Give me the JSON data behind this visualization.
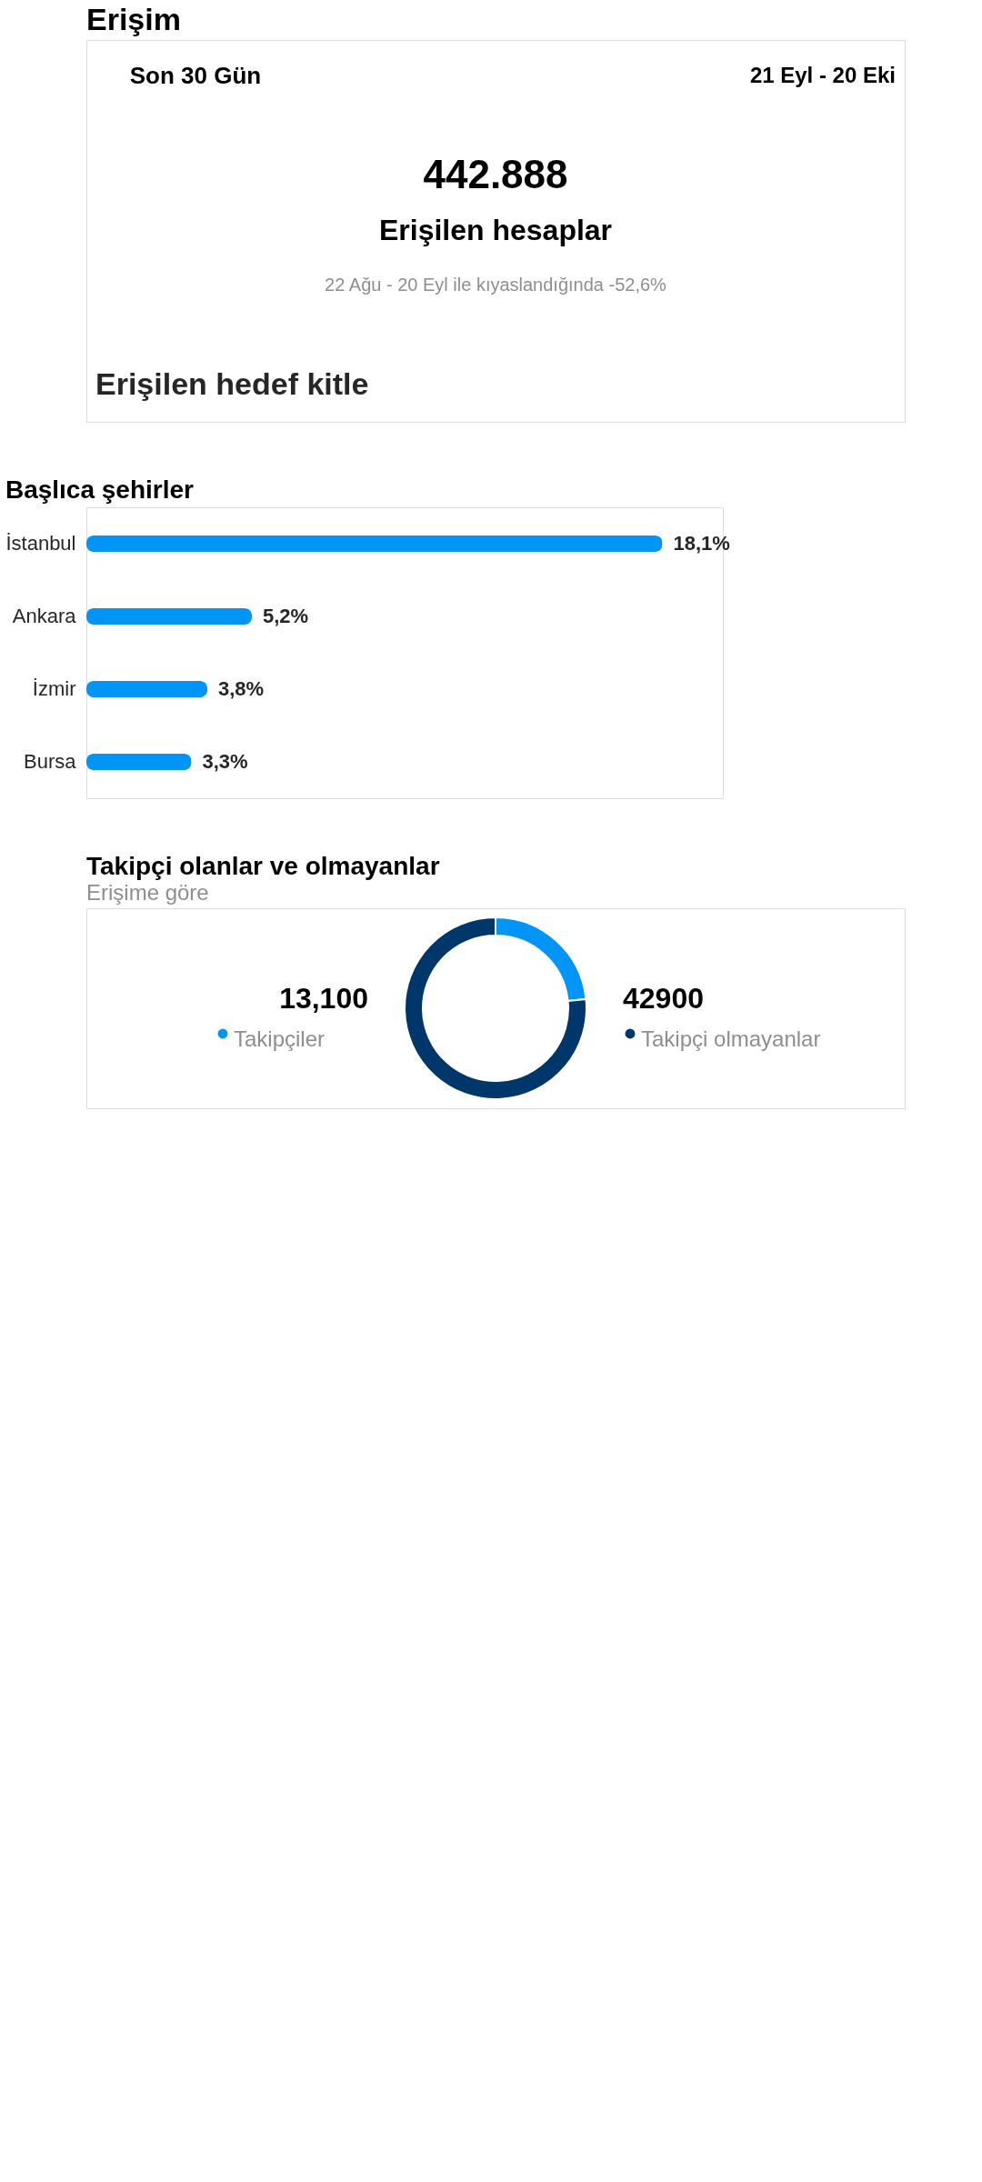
{
  "chart_data": [
    {
      "type": "other",
      "title": "Erişim",
      "annotations": [
        "Son 30 Gün",
        "21 Eyl - 20 Eki",
        "442.888",
        "Erişilen hesaplar",
        "22 Ağu - 20 Eyl ile kıyaslandığında -52,6%",
        "Erişilen hedef kitle"
      ]
    },
    {
      "type": "bar",
      "orientation": "horizontal",
      "title": "Başlıca şehirler",
      "categories": [
        "İstanbul",
        "Ankara",
        "İzmir",
        "Bursa"
      ],
      "values": [
        18.1,
        5.2,
        3.8,
        3.3
      ],
      "value_labels": [
        "18,1%",
        "5,2%",
        "3,8%",
        "3,3%"
      ],
      "color": "#0095f6",
      "tick_labels": "y"
    },
    {
      "type": "donut",
      "title": "Takipçi olanlar ve olmayanlar",
      "subtitle": "Erişime göre",
      "categories": [
        "Takipçiler",
        "Takipçi olmayanlar"
      ],
      "values": [
        13100,
        42900
      ],
      "value_labels": [
        "13,100",
        "42900"
      ],
      "colors": [
        "#0095f6",
        "#00376b"
      ],
      "legend": "bottom"
    }
  ]
}
